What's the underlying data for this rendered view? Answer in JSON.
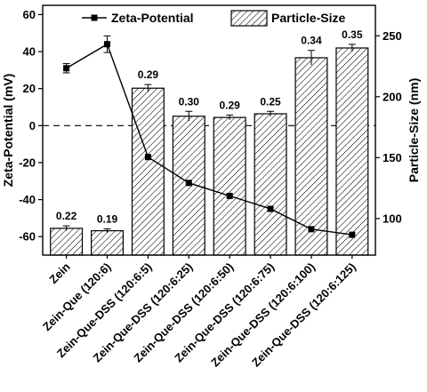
{
  "chart_data": {
    "type": "bar",
    "categories": [
      "Zein",
      "Zein-Que (120:6)",
      "Zein-Que-DSS (120:6:5)",
      "Zein-Que-DSS (120:6:25)",
      "Zein-Que-DSS (120:6:50)",
      "Zein-Que-DSS (120:6:75)",
      "Zein-Que-DSS (120:6:100)",
      "Zein-Que-DSS (120:6:125)"
    ],
    "series": [
      {
        "name": "Particle-Size",
        "type": "bar",
        "axis": "right",
        "values": [
          92,
          90,
          207,
          184,
          183,
          186,
          232,
          240
        ],
        "errors": [
          2,
          1.5,
          3,
          4,
          2,
          2,
          6,
          3
        ],
        "data_labels": [
          "0.22",
          "0.19",
          "0.29",
          "0.30",
          "0.29",
          "0.25",
          "0.34",
          "0.35"
        ],
        "color": "#ffffff",
        "pattern": "hatch"
      },
      {
        "name": "Zeta-Potential",
        "type": "line",
        "axis": "left",
        "values": [
          31,
          44,
          -17,
          -31,
          -38,
          -45,
          -56,
          -59
        ],
        "errors": [
          2.5,
          4.5,
          0,
          0,
          0,
          0,
          0,
          0
        ],
        "color": "#000000",
        "marker": "square"
      }
    ],
    "ylabel": "Zeta-Potential (mV)",
    "ylabel_right": "Particle-Size (nm)",
    "ylim": [
      -70,
      65
    ],
    "ylim_right": [
      70,
      275
    ],
    "yticks": [
      60,
      40,
      20,
      0,
      -20,
      -40,
      -60
    ],
    "yticks_right": [
      250,
      200,
      150,
      100
    ],
    "reference_line": {
      "y": 0,
      "style": "dashed"
    },
    "legend": {
      "placement": "top",
      "entries": [
        "Zeta-Potential",
        "Particle-Size"
      ]
    },
    "grid": false
  }
}
